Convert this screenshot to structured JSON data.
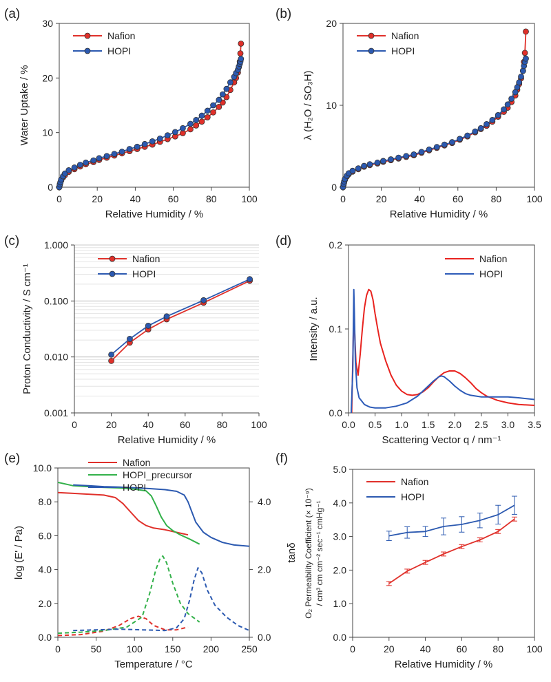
{
  "chart_data": [
    {
      "panel": "(a)",
      "type": "line",
      "xlabel": "Relative Humidity / %",
      "ylabel": "Water Uptake / %",
      "xlim": [
        0,
        100
      ],
      "ylim": [
        0,
        30
      ],
      "xticks": [
        0,
        20,
        40,
        60,
        80,
        100
      ],
      "yticks": [
        0,
        10,
        20,
        30
      ],
      "grid": false,
      "legend": "top-left",
      "series": [
        {
          "name": "Nafion",
          "color": "#e0302a",
          "markers": true,
          "x": [
            0,
            0.3,
            0.6,
            1,
            2,
            3,
            5,
            8,
            11,
            14,
            18,
            21,
            25,
            29,
            33,
            37,
            41,
            45,
            49,
            53,
            57,
            61,
            65,
            69,
            72,
            75,
            78,
            81,
            84,
            86,
            88,
            90,
            92,
            93,
            94,
            94.5,
            95,
            95.3,
            95.6
          ],
          "y": [
            0,
            0.4,
            0.8,
            1.2,
            1.8,
            2.2,
            2.8,
            3.3,
            3.8,
            4.2,
            4.6,
            5.0,
            5.4,
            5.8,
            6.2,
            6.6,
            7.0,
            7.4,
            7.8,
            8.3,
            8.8,
            9.3,
            9.9,
            10.6,
            11.3,
            12.0,
            12.8,
            13.7,
            14.7,
            15.5,
            16.5,
            17.8,
            19.2,
            20.0,
            21.0,
            22.0,
            23.0,
            24.5,
            26.3
          ]
        },
        {
          "name": "HOPI",
          "color": "#2b59b0",
          "markers": true,
          "x": [
            0,
            0.3,
            0.6,
            1,
            2,
            3,
            5,
            8,
            11,
            14,
            18,
            21,
            25,
            29,
            33,
            37,
            41,
            45,
            49,
            53,
            57,
            61,
            65,
            69,
            72,
            75,
            78,
            81,
            84,
            86,
            88,
            90,
            92,
            93,
            94,
            94.5,
            95,
            95.3,
            95.6
          ],
          "y": [
            0,
            0.5,
            0.9,
            1.4,
            2.0,
            2.5,
            3.1,
            3.6,
            4.1,
            4.5,
            4.9,
            5.3,
            5.7,
            6.1,
            6.5,
            7.0,
            7.4,
            7.9,
            8.4,
            8.9,
            9.5,
            10.1,
            10.8,
            11.6,
            12.3,
            13.1,
            14.0,
            15.0,
            16.0,
            17.0,
            18.0,
            19.2,
            20.2,
            20.9,
            21.5,
            22.1,
            22.6,
            23.0,
            23.5
          ]
        }
      ]
    },
    {
      "panel": "(b)",
      "type": "line",
      "xlabel": "Relative Humidity / %",
      "ylabel": "λ (H₂O / SO₃H)",
      "xlim": [
        0,
        100
      ],
      "ylim": [
        0,
        20
      ],
      "xticks": [
        0,
        20,
        40,
        60,
        80,
        100
      ],
      "yticks": [
        0,
        10,
        20
      ],
      "grid": false,
      "legend": "top-left",
      "series": [
        {
          "name": "Nafion",
          "color": "#e0302a",
          "markers": true,
          "x": [
            0,
            0.3,
            0.6,
            1,
            2,
            3,
            5,
            8,
            11,
            14,
            18,
            21,
            25,
            29,
            33,
            37,
            41,
            45,
            49,
            53,
            57,
            61,
            65,
            69,
            72,
            75,
            78,
            81,
            84,
            86,
            88,
            90,
            91,
            92,
            93,
            94,
            94.5,
            95,
            95.5
          ],
          "y": [
            0,
            0.3,
            0.6,
            0.9,
            1.3,
            1.6,
            1.9,
            2.2,
            2.5,
            2.7,
            2.9,
            3.1,
            3.3,
            3.5,
            3.7,
            3.9,
            4.2,
            4.5,
            4.8,
            5.1,
            5.4,
            5.8,
            6.2,
            6.7,
            7.1,
            7.5,
            8.0,
            8.6,
            9.2,
            9.7,
            10.4,
            11.2,
            11.9,
            12.6,
            13.3,
            14.2,
            15.3,
            16.4,
            19.0
          ]
        },
        {
          "name": "HOPI",
          "color": "#2b59b0",
          "markers": true,
          "x": [
            0,
            0.3,
            0.6,
            1,
            2,
            3,
            5,
            8,
            11,
            14,
            18,
            21,
            25,
            29,
            33,
            37,
            41,
            45,
            49,
            53,
            57,
            61,
            65,
            69,
            72,
            75,
            78,
            81,
            84,
            86,
            88,
            90,
            91,
            92,
            93,
            94,
            94.5,
            95,
            95.5
          ],
          "y": [
            0,
            0.4,
            0.7,
            1.0,
            1.4,
            1.7,
            2.0,
            2.3,
            2.6,
            2.8,
            3.0,
            3.2,
            3.4,
            3.6,
            3.8,
            4.0,
            4.3,
            4.6,
            4.9,
            5.2,
            5.5,
            5.9,
            6.3,
            6.8,
            7.2,
            7.7,
            8.2,
            8.8,
            9.5,
            10.1,
            10.8,
            11.6,
            12.2,
            12.8,
            13.5,
            14.2,
            14.8,
            15.3,
            15.7
          ]
        }
      ]
    },
    {
      "panel": "(c)",
      "type": "line",
      "xlabel": "Relative Humidity / %",
      "ylabel": "Proton Conductivity / S cm⁻¹",
      "xlim": [
        0,
        100
      ],
      "ylim": [
        0.001,
        1.0
      ],
      "yscale": "log",
      "xticks": [
        0,
        20,
        40,
        60,
        80,
        100
      ],
      "yticks": [
        0.001,
        0.01,
        0.1,
        1.0
      ],
      "ytick_labels": [
        "0.001",
        "0.010",
        "0.100",
        "1.000"
      ],
      "grid": true,
      "legend": "top-left",
      "series": [
        {
          "name": "Nafion",
          "color": "#e0302a",
          "markers": true,
          "x": [
            20,
            30,
            40,
            50,
            70,
            95
          ],
          "y": [
            0.0085,
            0.018,
            0.031,
            0.047,
            0.093,
            0.23
          ]
        },
        {
          "name": "HOPI",
          "color": "#2b59b0",
          "markers": true,
          "x": [
            20,
            30,
            40,
            50,
            70,
            95
          ],
          "y": [
            0.011,
            0.021,
            0.036,
            0.053,
            0.103,
            0.245
          ]
        }
      ]
    },
    {
      "panel": "(d)",
      "type": "line",
      "xlabel": "Scattering Vector q / nm⁻¹",
      "ylabel": "Intensity / a.u.",
      "xlim": [
        0,
        3.5
      ],
      "ylim": [
        0,
        0.2
      ],
      "xticks": [
        0.0,
        0.5,
        1.0,
        1.5,
        2.0,
        2.5,
        3.0,
        3.5
      ],
      "xtick_labels": [
        "0.0",
        "0.5",
        "1.0",
        "1.5",
        "2.0",
        "2.5",
        "3.0",
        "3.5"
      ],
      "yticks": [
        0,
        0.1,
        0.2
      ],
      "ytick_labels": [
        "0.0",
        "0.1",
        "0.2"
      ],
      "grid": false,
      "legend": "top-right",
      "series": [
        {
          "name": "Nafion",
          "color": "#e8231f",
          "markers": false,
          "x": [
            0.06,
            0.1,
            0.14,
            0.18,
            0.22,
            0.26,
            0.3,
            0.34,
            0.38,
            0.42,
            0.46,
            0.5,
            0.55,
            0.6,
            0.7,
            0.8,
            0.9,
            1.0,
            1.1,
            1.2,
            1.3,
            1.4,
            1.5,
            1.6,
            1.7,
            1.8,
            1.9,
            2.0,
            2.1,
            2.2,
            2.3,
            2.4,
            2.5,
            2.6,
            2.8,
            3.0,
            3.2,
            3.5
          ],
          "y": [
            0.0,
            0.12,
            0.06,
            0.045,
            0.07,
            0.1,
            0.125,
            0.14,
            0.147,
            0.145,
            0.135,
            0.118,
            0.1,
            0.083,
            0.062,
            0.045,
            0.033,
            0.026,
            0.022,
            0.021,
            0.022,
            0.025,
            0.03,
            0.037,
            0.043,
            0.048,
            0.05,
            0.05,
            0.047,
            0.042,
            0.036,
            0.029,
            0.024,
            0.02,
            0.015,
            0.012,
            0.01,
            0.009
          ]
        },
        {
          "name": "HOPI",
          "color": "#2d5bb8",
          "markers": false,
          "x": [
            0.05,
            0.08,
            0.1,
            0.11,
            0.13,
            0.16,
            0.2,
            0.3,
            0.4,
            0.5,
            0.7,
            0.9,
            1.1,
            1.3,
            1.5,
            1.6,
            1.7,
            1.75,
            1.8,
            1.9,
            2.0,
            2.1,
            2.2,
            2.3,
            2.5,
            2.7,
            3.0,
            3.2,
            3.5
          ],
          "y": [
            0.0,
            0.05,
            0.147,
            0.12,
            0.06,
            0.03,
            0.018,
            0.01,
            0.007,
            0.006,
            0.006,
            0.008,
            0.012,
            0.02,
            0.032,
            0.038,
            0.043,
            0.044,
            0.043,
            0.038,
            0.032,
            0.027,
            0.023,
            0.021,
            0.019,
            0.019,
            0.019,
            0.018,
            0.016
          ]
        }
      ]
    },
    {
      "panel": "(e)",
      "type": "line",
      "xlabel": "Temperature  / °C",
      "ylabel": "log (E' / Pa)",
      "y2label": "tanδ",
      "xlim": [
        0,
        250
      ],
      "ylim": [
        0,
        10
      ],
      "y2lim": [
        0,
        5
      ],
      "xticks": [
        0,
        50,
        100,
        150,
        200,
        250
      ],
      "yticks": [
        0,
        2,
        4,
        6,
        8,
        10
      ],
      "ytick_labels": [
        "0.0",
        "2.0",
        "4.0",
        "6.0",
        "8.0",
        "10.0"
      ],
      "y2ticks": [
        0,
        2,
        4
      ],
      "y2tick_labels": [
        "0.0",
        "2.0",
        "4.0"
      ],
      "grid": false,
      "legend": "top-left",
      "series": [
        {
          "name": "Nafion",
          "color": "#e0302a",
          "axis": "left",
          "style": "solid",
          "x": [
            0,
            20,
            40,
            60,
            75,
            85,
            95,
            105,
            115,
            125,
            140,
            155,
            170
          ],
          "y": [
            8.55,
            8.5,
            8.45,
            8.4,
            8.25,
            7.9,
            7.4,
            6.9,
            6.6,
            6.45,
            6.35,
            6.2,
            6.05
          ]
        },
        {
          "name": "HOPI_precursor",
          "color": "#33b14a",
          "axis": "left",
          "style": "solid",
          "x": [
            0,
            20,
            40,
            60,
            80,
            100,
            115,
            122,
            128,
            135,
            142,
            150,
            160,
            172,
            185
          ],
          "y": [
            9.15,
            8.95,
            8.9,
            8.85,
            8.82,
            8.75,
            8.65,
            8.35,
            7.8,
            7.1,
            6.6,
            6.3,
            6.05,
            5.8,
            5.5
          ]
        },
        {
          "name": "HOPI",
          "color": "#2b59b0",
          "axis": "left",
          "style": "solid",
          "x": [
            20,
            40,
            60,
            80,
            100,
            120,
            140,
            155,
            165,
            170,
            175,
            180,
            190,
            200,
            215,
            230,
            250
          ],
          "y": [
            9.0,
            8.95,
            8.9,
            8.87,
            8.83,
            8.78,
            8.72,
            8.62,
            8.4,
            8.0,
            7.4,
            6.8,
            6.2,
            5.9,
            5.6,
            5.45,
            5.38
          ]
        },
        {
          "name": "Nafion",
          "color": "#e0302a",
          "axis": "right",
          "style": "dashed",
          "x": [
            0,
            30,
            60,
            80,
            95,
            105,
            115,
            125,
            140,
            155,
            170
          ],
          "y": [
            0.05,
            0.08,
            0.18,
            0.35,
            0.55,
            0.62,
            0.55,
            0.35,
            0.22,
            0.22,
            0.3
          ]
        },
        {
          "name": "HOPI_precursor",
          "color": "#33b14a",
          "axis": "right",
          "style": "dashed",
          "x": [
            0,
            30,
            60,
            90,
            110,
            120,
            128,
            133,
            137,
            142,
            150,
            160,
            170,
            185
          ],
          "y": [
            0.12,
            0.15,
            0.2,
            0.3,
            0.6,
            1.3,
            2.0,
            2.3,
            2.4,
            2.2,
            1.6,
            1.0,
            0.7,
            0.45
          ]
        },
        {
          "name": "HOPI",
          "color": "#2b59b0",
          "axis": "right",
          "style": "dashed",
          "x": [
            20,
            50,
            80,
            110,
            140,
            155,
            165,
            172,
            178,
            183,
            188,
            195,
            205,
            220,
            235,
            250
          ],
          "y": [
            0.2,
            0.22,
            0.24,
            0.22,
            0.2,
            0.28,
            0.55,
            1.1,
            1.7,
            2.05,
            1.9,
            1.4,
            0.95,
            0.6,
            0.35,
            0.2
          ]
        }
      ]
    },
    {
      "panel": "(f)",
      "type": "line",
      "xlabel": "Relative Humidity / %",
      "ylabel_line1": "O₂ Permeability Coefficient (× 10⁻⁹)",
      "ylabel_line2": "/ cm³ cm cm⁻² sec⁻¹ cmHg⁻¹",
      "xlim": [
        0,
        100
      ],
      "ylim": [
        0,
        5
      ],
      "xticks": [
        0,
        20,
        40,
        60,
        80,
        100
      ],
      "yticks": [
        0,
        1,
        2,
        3,
        4,
        5
      ],
      "ytick_labels": [
        "0.0",
        "1.0",
        "2.0",
        "3.0",
        "4.0",
        "5.0"
      ],
      "grid": false,
      "legend": "top-left",
      "series": [
        {
          "name": "Nafion",
          "color": "#e0302a",
          "markers": false,
          "x": [
            20,
            30,
            40,
            50,
            60,
            70,
            80,
            89
          ],
          "y": [
            1.6,
            1.97,
            2.23,
            2.48,
            2.7,
            2.9,
            3.15,
            3.52
          ],
          "err": [
            0.06,
            0.06,
            0.06,
            0.06,
            0.06,
            0.06,
            0.06,
            0.06
          ]
        },
        {
          "name": "HOPI",
          "color": "#2b59b0",
          "markers": false,
          "x": [
            20,
            30,
            40,
            50,
            60,
            70,
            80,
            89
          ],
          "y": [
            3.02,
            3.12,
            3.15,
            3.3,
            3.36,
            3.48,
            3.65,
            3.93
          ],
          "err": [
            0.14,
            0.17,
            0.15,
            0.25,
            0.23,
            0.22,
            0.28,
            0.27
          ]
        }
      ]
    }
  ]
}
